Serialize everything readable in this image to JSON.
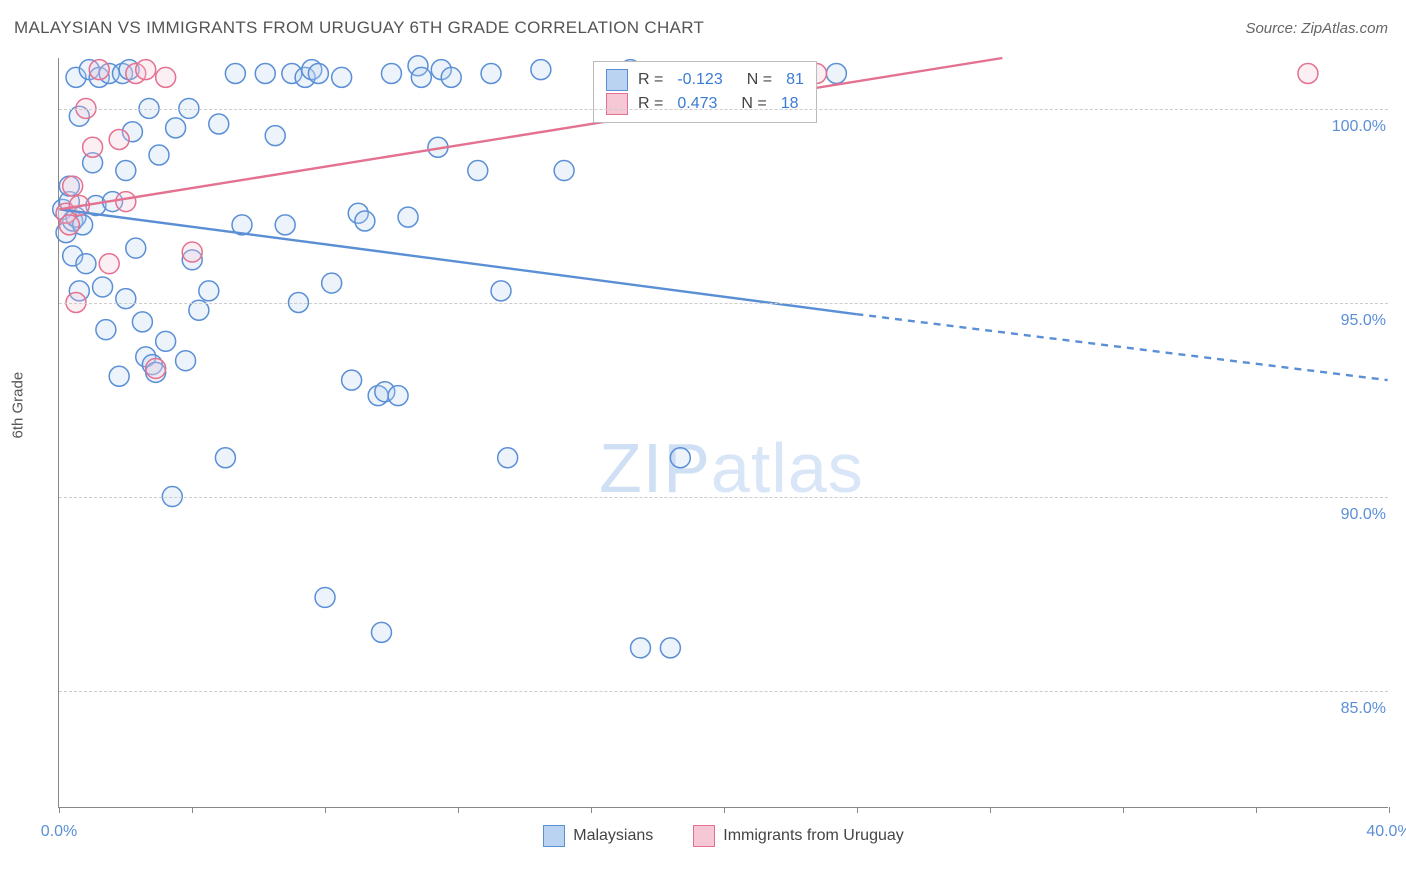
{
  "title": "MALAYSIAN VS IMMIGRANTS FROM URUGUAY 6TH GRADE CORRELATION CHART",
  "source": "Source: ZipAtlas.com",
  "y_axis_label": "6th Grade",
  "watermark": {
    "bold": "ZIP",
    "light": "atlas"
  },
  "chart": {
    "type": "scatter-with-regression",
    "xlim": [
      0,
      40
    ],
    "ylim": [
      82,
      101.3
    ],
    "x_ticks": [
      0,
      4,
      8,
      12,
      16,
      20,
      24,
      28,
      32,
      36,
      40
    ],
    "x_tick_labels_shown": {
      "0": "0.0%",
      "40": "40.0%"
    },
    "y_ticks": [
      85,
      90,
      95,
      100
    ],
    "y_tick_labels": {
      "85": "85.0%",
      "90": "90.0%",
      "95": "95.0%",
      "100": "100.0%"
    },
    "grid_color": "#cccccc",
    "background_color": "#ffffff",
    "axis_color": "#888888",
    "label_fontsize": 15,
    "tick_fontsize": 16,
    "tick_label_color": "#5a8fd6",
    "marker_radius": 10,
    "marker_stroke_width": 1.5,
    "marker_fill_opacity": 0.28,
    "series": {
      "malaysians": {
        "label": "Malaysians",
        "color": "#5a8fd6",
        "fill": "#b9d3f0",
        "stroke": "#5a8fd6",
        "R": "-0.123",
        "N": "81",
        "regression": {
          "solid": {
            "x1": 0,
            "y1": 97.4,
            "x2": 24,
            "y2": 94.7
          },
          "dashed": {
            "x1": 24,
            "y1": 94.7,
            "x2": 40,
            "y2": 93.0
          },
          "stroke_width": 2.4,
          "dash": "7,6"
        },
        "points": [
          [
            0.1,
            97.4
          ],
          [
            0.2,
            96.8
          ],
          [
            0.3,
            97.6
          ],
          [
            0.3,
            98.0
          ],
          [
            0.4,
            97.1
          ],
          [
            0.4,
            96.2
          ],
          [
            0.5,
            97.2
          ],
          [
            0.5,
            100.8
          ],
          [
            0.6,
            99.8
          ],
          [
            0.6,
            95.3
          ],
          [
            0.7,
            97.0
          ],
          [
            0.8,
            96.0
          ],
          [
            0.9,
            101.0
          ],
          [
            1.0,
            98.6
          ],
          [
            1.1,
            97.5
          ],
          [
            1.2,
            100.8
          ],
          [
            1.3,
            95.4
          ],
          [
            1.4,
            94.3
          ],
          [
            1.5,
            100.9
          ],
          [
            1.6,
            97.6
          ],
          [
            1.8,
            93.1
          ],
          [
            1.9,
            100.9
          ],
          [
            2.0,
            95.1
          ],
          [
            2.0,
            98.4
          ],
          [
            2.1,
            101.0
          ],
          [
            2.2,
            99.4
          ],
          [
            2.3,
            96.4
          ],
          [
            2.5,
            94.5
          ],
          [
            2.6,
            93.6
          ],
          [
            2.7,
            100.0
          ],
          [
            2.8,
            93.4
          ],
          [
            2.9,
            93.2
          ],
          [
            3.0,
            98.8
          ],
          [
            3.2,
            94.0
          ],
          [
            3.4,
            90.0
          ],
          [
            3.5,
            99.5
          ],
          [
            3.8,
            93.5
          ],
          [
            3.9,
            100.0
          ],
          [
            4.0,
            96.1
          ],
          [
            4.2,
            94.8
          ],
          [
            4.5,
            95.3
          ],
          [
            4.8,
            99.6
          ],
          [
            5.0,
            91.0
          ],
          [
            5.3,
            100.9
          ],
          [
            5.5,
            97.0
          ],
          [
            6.2,
            100.9
          ],
          [
            6.5,
            99.3
          ],
          [
            6.8,
            97.0
          ],
          [
            7.0,
            100.9
          ],
          [
            7.2,
            95.0
          ],
          [
            7.4,
            100.8
          ],
          [
            7.6,
            101.0
          ],
          [
            7.8,
            100.9
          ],
          [
            8.0,
            87.4
          ],
          [
            8.2,
            95.5
          ],
          [
            8.5,
            100.8
          ],
          [
            8.8,
            93.0
          ],
          [
            9.0,
            97.3
          ],
          [
            9.2,
            97.1
          ],
          [
            9.6,
            92.6
          ],
          [
            9.7,
            86.5
          ],
          [
            9.8,
            92.7
          ],
          [
            10.0,
            100.9
          ],
          [
            10.2,
            92.6
          ],
          [
            10.5,
            97.2
          ],
          [
            10.8,
            101.1
          ],
          [
            10.9,
            100.8
          ],
          [
            11.4,
            99.0
          ],
          [
            11.5,
            101.0
          ],
          [
            11.8,
            100.8
          ],
          [
            12.6,
            98.4
          ],
          [
            13.0,
            100.9
          ],
          [
            13.3,
            95.3
          ],
          [
            13.5,
            91.0
          ],
          [
            14.5,
            101.0
          ],
          [
            15.2,
            98.4
          ],
          [
            17.2,
            101.0
          ],
          [
            17.5,
            86.1
          ],
          [
            18.4,
            86.1
          ],
          [
            18.7,
            91.0
          ],
          [
            23.4,
            100.9
          ]
        ]
      },
      "uruguay": {
        "label": "Immigrants from Uruguay",
        "color": "#e4718f",
        "fill": "#f6c7d4",
        "stroke": "#e4718f",
        "R": "0.473",
        "N": "18",
        "regression": {
          "solid": {
            "x1": 0,
            "y1": 97.4,
            "x2": 28.4,
            "y2": 101.3
          },
          "dashed": null,
          "stroke_width": 2.4
        },
        "points": [
          [
            0.2,
            97.3
          ],
          [
            0.3,
            97.0
          ],
          [
            0.4,
            98.0
          ],
          [
            0.5,
            95.0
          ],
          [
            0.6,
            97.5
          ],
          [
            0.8,
            100.0
          ],
          [
            1.0,
            99.0
          ],
          [
            1.2,
            101.0
          ],
          [
            1.5,
            96.0
          ],
          [
            1.8,
            99.2
          ],
          [
            2.0,
            97.6
          ],
          [
            2.3,
            100.9
          ],
          [
            2.6,
            101.0
          ],
          [
            2.9,
            93.3
          ],
          [
            3.2,
            100.8
          ],
          [
            4.0,
            96.3
          ],
          [
            22.8,
            100.9
          ],
          [
            37.6,
            100.9
          ]
        ]
      }
    }
  },
  "legend_bottom": [
    {
      "swatch_fill": "#b9d3f0",
      "swatch_border": "#5a8fd6",
      "label": "Malaysians"
    },
    {
      "swatch_fill": "#f6c7d4",
      "swatch_border": "#e4718f",
      "label": "Immigrants from Uruguay"
    }
  ],
  "legend_top": [
    {
      "swatch_fill": "#b9d3f0",
      "swatch_border": "#5a8fd6",
      "R": "-0.123",
      "N": "81"
    },
    {
      "swatch_fill": "#f6c7d4",
      "swatch_border": "#e4718f",
      "R": "0.473",
      "N": "18"
    }
  ]
}
